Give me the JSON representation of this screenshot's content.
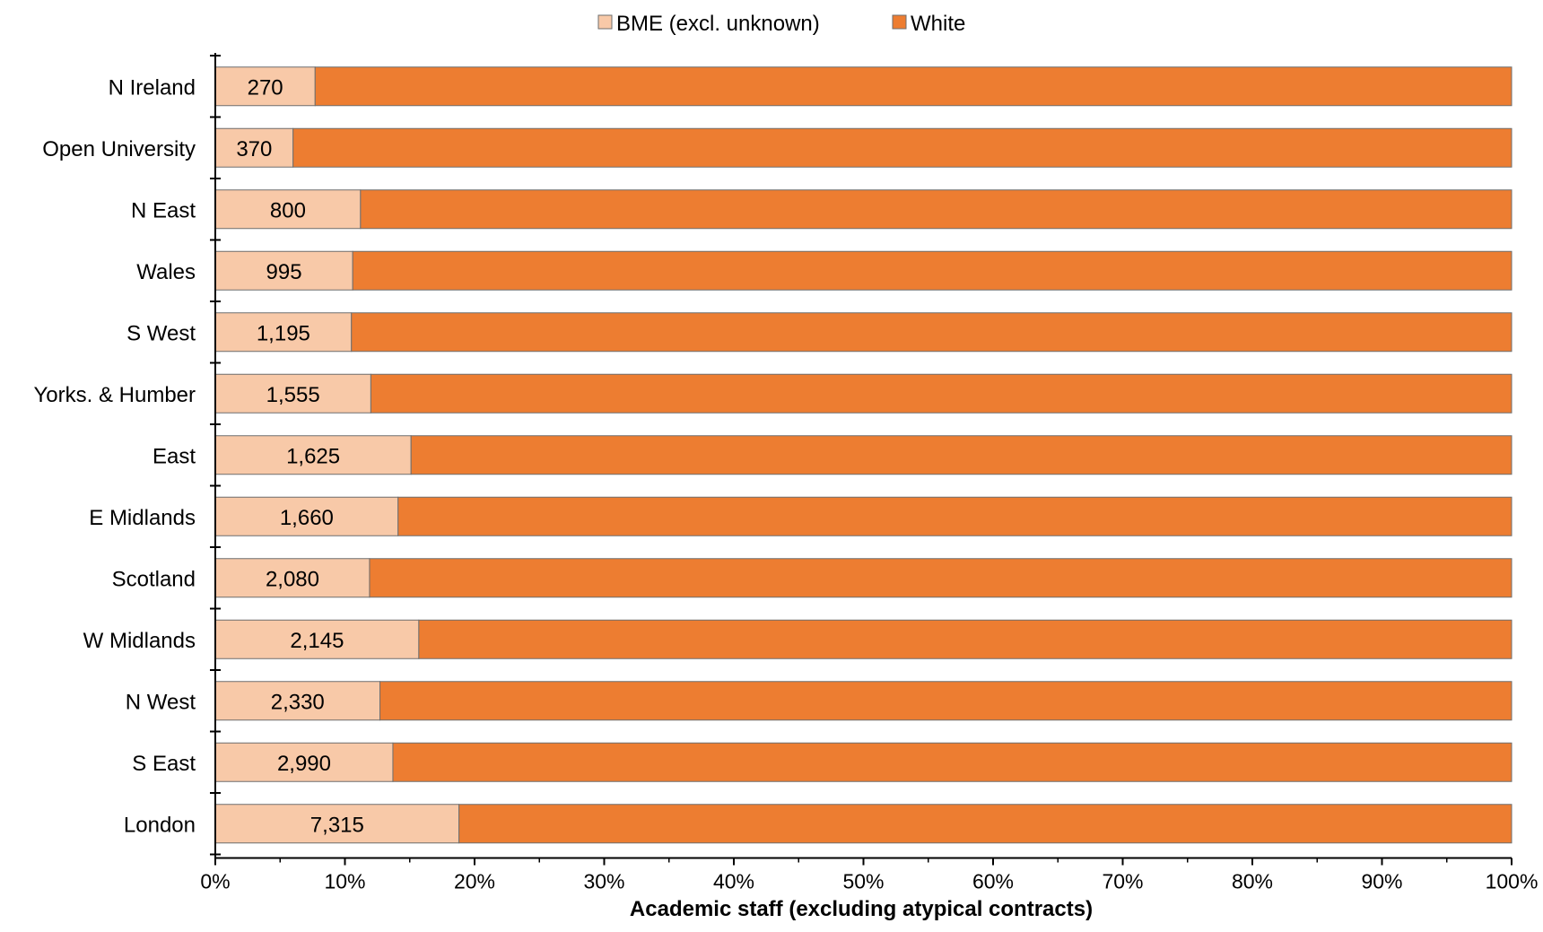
{
  "colors": {
    "bme": "#F8C9A8",
    "white": "#ED7D31",
    "bar_stroke": "#6E6E6E",
    "axis": "#000000",
    "text": "#000000"
  },
  "chart_data": {
    "type": "bar",
    "orientation": "horizontal",
    "stacking": "percent",
    "title": "",
    "xlabel": "Academic staff (excluding atypical contracts)",
    "ylabel": "",
    "xlim": [
      0,
      100
    ],
    "x_ticks": [
      "0%",
      "10%",
      "20%",
      "30%",
      "40%",
      "50%",
      "60%",
      "70%",
      "80%",
      "90%",
      "100%"
    ],
    "grid": false,
    "legend_position": "top-center",
    "categories": [
      "N Ireland",
      "Open University",
      "N East",
      "Wales",
      "S West",
      "Yorks. & Humber",
      "East",
      "E Midlands",
      "Scotland",
      "W Midlands",
      "N West",
      "S East",
      "London"
    ],
    "series": [
      {
        "name": "BME (excl. unknown)",
        "values": [
          7.7,
          6.0,
          11.2,
          10.6,
          10.5,
          12.0,
          15.1,
          14.1,
          11.9,
          15.7,
          12.7,
          13.7,
          18.8
        ],
        "labels": [
          "270",
          "370",
          "800",
          "995",
          "1,195",
          "1,555",
          "1,625",
          "1,660",
          "2,080",
          "2,145",
          "2,330",
          "2,990",
          "7,315"
        ]
      },
      {
        "name": "White",
        "values": [
          92.3,
          94.0,
          88.8,
          89.4,
          89.5,
          88.0,
          84.9,
          85.9,
          88.1,
          84.3,
          87.3,
          86.3,
          81.2
        ]
      }
    ]
  }
}
